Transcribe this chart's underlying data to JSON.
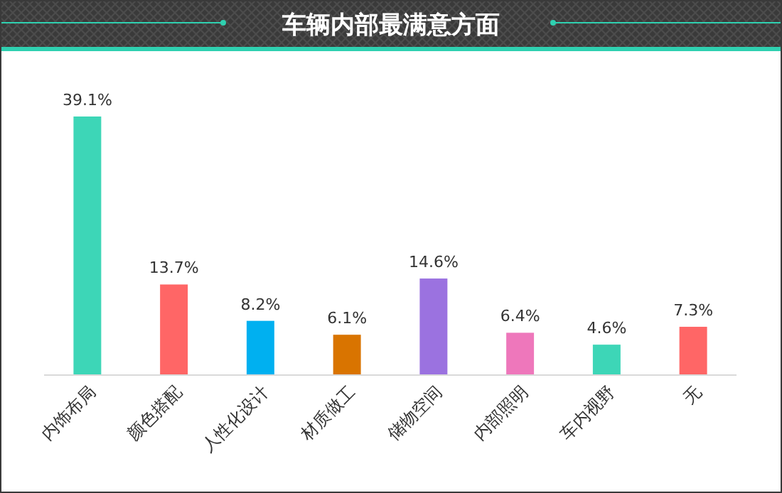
{
  "chart_data": {
    "type": "bar",
    "title": "车辆内部最满意方面",
    "categories": [
      "内饰布局",
      "颜色搭配",
      "人性化设计",
      "材质做工",
      "储物空间",
      "内部照明",
      "车内视野",
      "无"
    ],
    "values": [
      39.1,
      13.7,
      8.2,
      6.1,
      14.6,
      6.4,
      4.6,
      7.3
    ],
    "colors": [
      "#3dd6b7",
      "#ff6666",
      "#00b0f0",
      "#d97400",
      "#9b72e0",
      "#ee77bb",
      "#3dd6b7",
      "#ff6666"
    ],
    "value_labels": [
      "39.1%",
      "13.7%",
      "8.2%",
      "6.1%",
      "14.6%",
      "6.4%",
      "4.6%",
      "7.3%"
    ]
  }
}
